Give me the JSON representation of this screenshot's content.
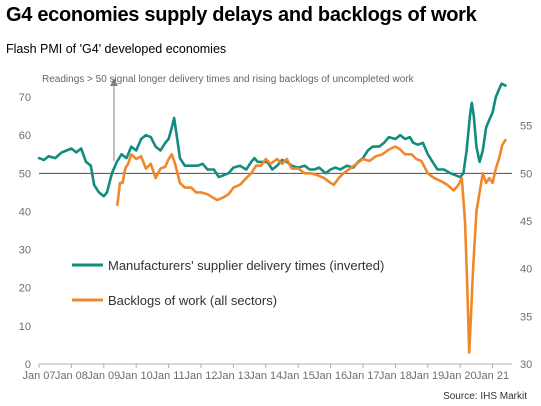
{
  "chart_data": {
    "type": "line",
    "title": "G4 economies supply delays and backlogs of work",
    "subtitle": "Flash PMI of 'G4' developed economies",
    "source": "Source: IHS Markit",
    "annotation": "Readings > 50 signal longer delivery times and rising backlogs of uncompleted work",
    "x_ticks": [
      "Jan 07",
      "Jan 08",
      "Jan 09",
      "Jan 10",
      "Jan 11",
      "Jan 12",
      "Jan 13",
      "Jan 14",
      "Jan 15",
      "Jan 16",
      "Jan 17",
      "Jan 18",
      "Jan 19",
      "Jan 20",
      "Jan 21"
    ],
    "xlim": [
      2007.0,
      2021.6
    ],
    "y_left": {
      "ylim": [
        0,
        75
      ],
      "ticks": [
        0,
        10,
        20,
        30,
        40,
        50,
        60,
        70
      ]
    },
    "y_right": {
      "ylim": [
        30,
        60
      ],
      "ticks": [
        30,
        35,
        40,
        45,
        50,
        55
      ]
    },
    "reference_line": 50,
    "series": [
      {
        "name": "Manufacturers' supplier delivery times (inverted)",
        "axis": "left",
        "color": "#128c7e",
        "points": [
          [
            2007.0,
            54
          ],
          [
            2007.15,
            53.5
          ],
          [
            2007.3,
            54.5
          ],
          [
            2007.5,
            54
          ],
          [
            2007.7,
            55.5
          ],
          [
            2007.85,
            56
          ],
          [
            2008.0,
            56.5
          ],
          [
            2008.15,
            55.5
          ],
          [
            2008.3,
            56.5
          ],
          [
            2008.45,
            53
          ],
          [
            2008.6,
            52
          ],
          [
            2008.7,
            47
          ],
          [
            2008.85,
            45
          ],
          [
            2009.0,
            44
          ],
          [
            2009.1,
            45
          ],
          [
            2009.25,
            50
          ],
          [
            2009.4,
            53
          ],
          [
            2009.55,
            55
          ],
          [
            2009.7,
            54
          ],
          [
            2009.85,
            57
          ],
          [
            2010.0,
            56
          ],
          [
            2010.15,
            59
          ],
          [
            2010.3,
            60
          ],
          [
            2010.45,
            59.5
          ],
          [
            2010.6,
            57
          ],
          [
            2010.75,
            56
          ],
          [
            2010.9,
            58
          ],
          [
            2011.0,
            59
          ],
          [
            2011.1,
            62
          ],
          [
            2011.17,
            64.5
          ],
          [
            2011.25,
            60
          ],
          [
            2011.35,
            54
          ],
          [
            2011.5,
            52
          ],
          [
            2011.7,
            52
          ],
          [
            2011.9,
            52
          ],
          [
            2012.05,
            52.5
          ],
          [
            2012.2,
            51
          ],
          [
            2012.4,
            51
          ],
          [
            2012.55,
            49
          ],
          [
            2012.7,
            49.5
          ],
          [
            2012.85,
            50
          ],
          [
            2013.0,
            51.5
          ],
          [
            2013.2,
            52
          ],
          [
            2013.4,
            51
          ],
          [
            2013.55,
            53
          ],
          [
            2013.65,
            54
          ],
          [
            2013.75,
            53
          ],
          [
            2013.9,
            53
          ],
          [
            2014.05,
            53
          ],
          [
            2014.2,
            51
          ],
          [
            2014.35,
            52
          ],
          [
            2014.5,
            53.5
          ],
          [
            2014.65,
            53
          ],
          [
            2014.8,
            52
          ],
          [
            2015.0,
            51.5
          ],
          [
            2015.2,
            52
          ],
          [
            2015.35,
            51
          ],
          [
            2015.5,
            51
          ],
          [
            2015.65,
            51.5
          ],
          [
            2015.85,
            50
          ],
          [
            2016.0,
            51
          ],
          [
            2016.15,
            51.5
          ],
          [
            2016.3,
            51
          ],
          [
            2016.5,
            52
          ],
          [
            2016.7,
            51.5
          ],
          [
            2016.85,
            53
          ],
          [
            2017.0,
            54
          ],
          [
            2017.15,
            56
          ],
          [
            2017.3,
            57
          ],
          [
            2017.5,
            57
          ],
          [
            2017.65,
            58
          ],
          [
            2017.8,
            59.5
          ],
          [
            2018.0,
            59
          ],
          [
            2018.15,
            60
          ],
          [
            2018.3,
            59
          ],
          [
            2018.45,
            59.5
          ],
          [
            2018.55,
            58
          ],
          [
            2018.7,
            57.5
          ],
          [
            2018.85,
            58
          ],
          [
            2019.0,
            55
          ],
          [
            2019.15,
            53
          ],
          [
            2019.3,
            51
          ],
          [
            2019.5,
            51
          ],
          [
            2019.7,
            50
          ],
          [
            2019.85,
            49.5
          ],
          [
            2020.0,
            49
          ],
          [
            2020.1,
            50
          ],
          [
            2020.2,
            56
          ],
          [
            2020.3,
            65
          ],
          [
            2020.36,
            68.5
          ],
          [
            2020.42,
            65
          ],
          [
            2020.5,
            57
          ],
          [
            2020.6,
            53
          ],
          [
            2020.7,
            56
          ],
          [
            2020.8,
            62
          ],
          [
            2020.9,
            64
          ],
          [
            2021.0,
            66
          ],
          [
            2021.1,
            70
          ],
          [
            2021.2,
            72
          ],
          [
            2021.28,
            73.5
          ],
          [
            2021.4,
            73
          ]
        ]
      },
      {
        "name": "Backlogs of work (all sectors)",
        "axis": "right",
        "color": "#f0882b",
        "points": [
          [
            2009.42,
            46.7
          ],
          [
            2009.5,
            49
          ],
          [
            2009.58,
            49
          ],
          [
            2009.66,
            50.5
          ],
          [
            2009.75,
            51
          ],
          [
            2009.85,
            52
          ],
          [
            2010.0,
            51.5
          ],
          [
            2010.15,
            51.8
          ],
          [
            2010.3,
            50.5
          ],
          [
            2010.45,
            51
          ],
          [
            2010.6,
            49.5
          ],
          [
            2010.75,
            50.5
          ],
          [
            2010.9,
            50.7
          ],
          [
            2011.0,
            51.5
          ],
          [
            2011.1,
            52
          ],
          [
            2011.2,
            51
          ],
          [
            2011.35,
            49
          ],
          [
            2011.5,
            48.5
          ],
          [
            2011.7,
            48.5
          ],
          [
            2011.85,
            48
          ],
          [
            2012.0,
            48
          ],
          [
            2012.2,
            47.8
          ],
          [
            2012.35,
            47.5
          ],
          [
            2012.5,
            47.2
          ],
          [
            2012.7,
            47.5
          ],
          [
            2012.85,
            47.8
          ],
          [
            2013.0,
            48.5
          ],
          [
            2013.2,
            48.8
          ],
          [
            2013.4,
            49.5
          ],
          [
            2013.55,
            50
          ],
          [
            2013.7,
            50.8
          ],
          [
            2013.85,
            50.8
          ],
          [
            2014.0,
            51.5
          ],
          [
            2014.15,
            51
          ],
          [
            2014.35,
            51.5
          ],
          [
            2014.5,
            51
          ],
          [
            2014.65,
            51.5
          ],
          [
            2014.8,
            50.5
          ],
          [
            2015.0,
            50.5
          ],
          [
            2015.2,
            50
          ],
          [
            2015.4,
            50
          ],
          [
            2015.6,
            49.8
          ],
          [
            2015.8,
            49.5
          ],
          [
            2016.0,
            49
          ],
          [
            2016.1,
            48.8
          ],
          [
            2016.25,
            49.5
          ],
          [
            2016.4,
            50
          ],
          [
            2016.6,
            50.5
          ],
          [
            2016.8,
            51
          ],
          [
            2017.0,
            51.5
          ],
          [
            2017.2,
            51.3
          ],
          [
            2017.4,
            51.8
          ],
          [
            2017.6,
            52
          ],
          [
            2017.8,
            52.5
          ],
          [
            2018.0,
            52.8
          ],
          [
            2018.15,
            52.5
          ],
          [
            2018.3,
            52
          ],
          [
            2018.5,
            52
          ],
          [
            2018.65,
            51.5
          ],
          [
            2018.8,
            51.3
          ],
          [
            2019.0,
            50
          ],
          [
            2019.2,
            49.5
          ],
          [
            2019.4,
            49.2
          ],
          [
            2019.6,
            48.8
          ],
          [
            2019.8,
            48.2
          ],
          [
            2019.95,
            48.8
          ],
          [
            2020.05,
            49.5
          ],
          [
            2020.15,
            45
          ],
          [
            2020.22,
            38
          ],
          [
            2020.28,
            31.2
          ],
          [
            2020.32,
            34
          ],
          [
            2020.4,
            40
          ],
          [
            2020.5,
            46
          ],
          [
            2020.6,
            48
          ],
          [
            2020.7,
            50
          ],
          [
            2020.8,
            49
          ],
          [
            2020.9,
            49.5
          ],
          [
            2021.0,
            49
          ],
          [
            2021.1,
            50.5
          ],
          [
            2021.2,
            51.5
          ],
          [
            2021.3,
            53
          ],
          [
            2021.4,
            53.5
          ]
        ]
      }
    ]
  }
}
